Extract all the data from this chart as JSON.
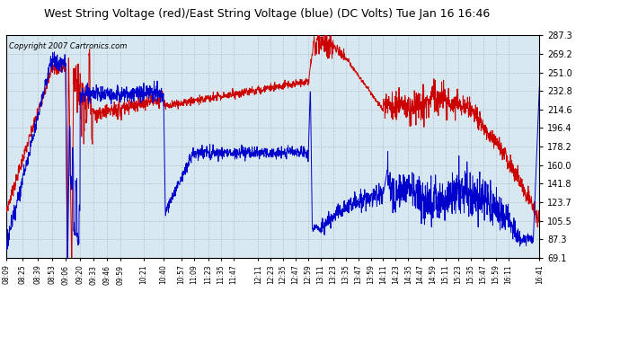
{
  "title": "West String Voltage (red)/East String Voltage (blue) (DC Volts) Tue Jan 16 16:46",
  "copyright": "Copyright 2007 Cartronics.com",
  "y_ticks": [
    69.1,
    87.3,
    105.5,
    123.7,
    141.8,
    160.0,
    178.2,
    196.4,
    214.6,
    232.8,
    251.0,
    269.2,
    287.3
  ],
  "x_labels": [
    "08:09",
    "08:25",
    "08:39",
    "08:53",
    "09:06",
    "09:20",
    "09:33",
    "09:46",
    "09:59",
    "10:21",
    "10:40",
    "10:57",
    "11:09",
    "11:23",
    "11:35",
    "11:47",
    "12:11",
    "12:23",
    "12:35",
    "12:47",
    "12:59",
    "13:11",
    "13:23",
    "13:35",
    "13:47",
    "13:59",
    "14:11",
    "14:23",
    "14:35",
    "14:47",
    "14:59",
    "15:11",
    "15:23",
    "15:35",
    "15:47",
    "15:59",
    "16:11",
    "16:41"
  ],
  "ymin": 69.1,
  "ymax": 287.3,
  "bg_color": "#ffffff",
  "plot_bg_color": "#d8e8f0",
  "grid_color": "#b0b8c8",
  "red_color": "#cc0000",
  "blue_color": "#0000cc",
  "title_fontsize": 9.5,
  "copyright_fontsize": 6.5
}
